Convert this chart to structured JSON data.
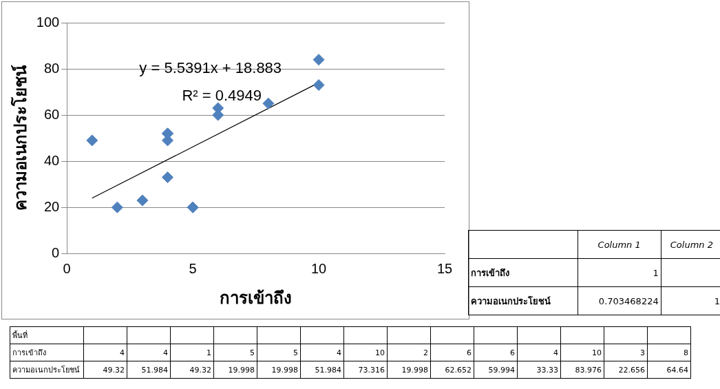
{
  "chart_data": {
    "type": "scatter",
    "xlabel": "การเข้าถึง",
    "ylabel": "ความอเนกประโยชน์",
    "xlim": [
      0,
      15
    ],
    "xticks": [
      0,
      5,
      10,
      15
    ],
    "ylim": [
      0,
      100
    ],
    "yticks": [
      0,
      20,
      40,
      60,
      80,
      100
    ],
    "grid": "y",
    "legend": false,
    "marker": "diamond",
    "series": [
      {
        "color": "#4f81bd",
        "x": [
          4,
          4,
          1,
          5,
          5,
          4,
          10,
          2,
          6,
          6,
          4,
          10,
          3,
          8
        ],
        "values": [
          49,
          52,
          49,
          20,
          20,
          52,
          73,
          20,
          63,
          60,
          33,
          84,
          23,
          65
        ]
      },
      {
        "type": "line",
        "marker": "none",
        "color": "#000000",
        "x": [
          1,
          10
        ],
        "values": [
          24,
          74
        ]
      }
    ],
    "annotations": [
      "y = 5.5391x + 18.883",
      "R² = 0.4949",
      "Column 1",
      "Column 2",
      "การเข้าถึง",
      "ความอเนกประโยชน์",
      "1",
      "0.703468224",
      "1",
      "พื้นที่",
      "การเข้าถึง",
      "ความอเนกประโยชน์",
      "4",
      "4",
      "1",
      "5",
      "5",
      "4",
      "10",
      "2",
      "6",
      "6",
      "4",
      "10",
      "3",
      "8",
      "49.32",
      "51.984",
      "49.32",
      "19.998",
      "19.998",
      "51.984",
      "73.316",
      "19.998",
      "62.652",
      "59.994",
      "33.33",
      "83.976",
      "22.656",
      "64.64"
    ]
  }
}
